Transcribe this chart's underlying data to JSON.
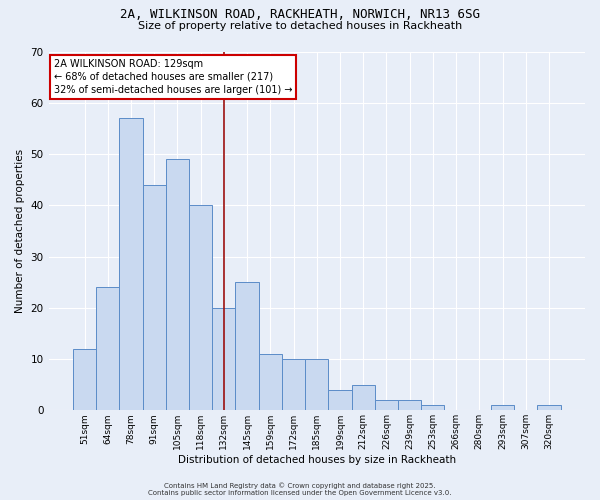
{
  "title_line1": "2A, WILKINSON ROAD, RACKHEATH, NORWICH, NR13 6SG",
  "title_line2": "Size of property relative to detached houses in Rackheath",
  "xlabel": "Distribution of detached houses by size in Rackheath",
  "ylabel": "Number of detached properties",
  "bar_labels": [
    "51sqm",
    "64sqm",
    "78sqm",
    "91sqm",
    "105sqm",
    "118sqm",
    "132sqm",
    "145sqm",
    "159sqm",
    "172sqm",
    "185sqm",
    "199sqm",
    "212sqm",
    "226sqm",
    "239sqm",
    "253sqm",
    "266sqm",
    "280sqm",
    "293sqm",
    "307sqm",
    "320sqm"
  ],
  "bar_heights": [
    12,
    24,
    57,
    44,
    49,
    40,
    20,
    25,
    11,
    10,
    10,
    4,
    5,
    2,
    2,
    1,
    0,
    0,
    1,
    0,
    1
  ],
  "bar_color": "#c9d9f0",
  "bar_edge_color": "#5b8cc8",
  "reference_line_index": 6,
  "reference_line_color": "#9b1010",
  "annotation_text": "2A WILKINSON ROAD: 129sqm\n← 68% of detached houses are smaller (217)\n32% of semi-detached houses are larger (101) →",
  "annotation_box_facecolor": "#ffffff",
  "annotation_box_edgecolor": "#cc0000",
  "ylim": [
    0,
    70
  ],
  "yticks": [
    0,
    10,
    20,
    30,
    40,
    50,
    60,
    70
  ],
  "background_color": "#e8eef8",
  "grid_color": "#ffffff",
  "footer_line1": "Contains HM Land Registry data © Crown copyright and database right 2025.",
  "footer_line2": "Contains public sector information licensed under the Open Government Licence v3.0."
}
